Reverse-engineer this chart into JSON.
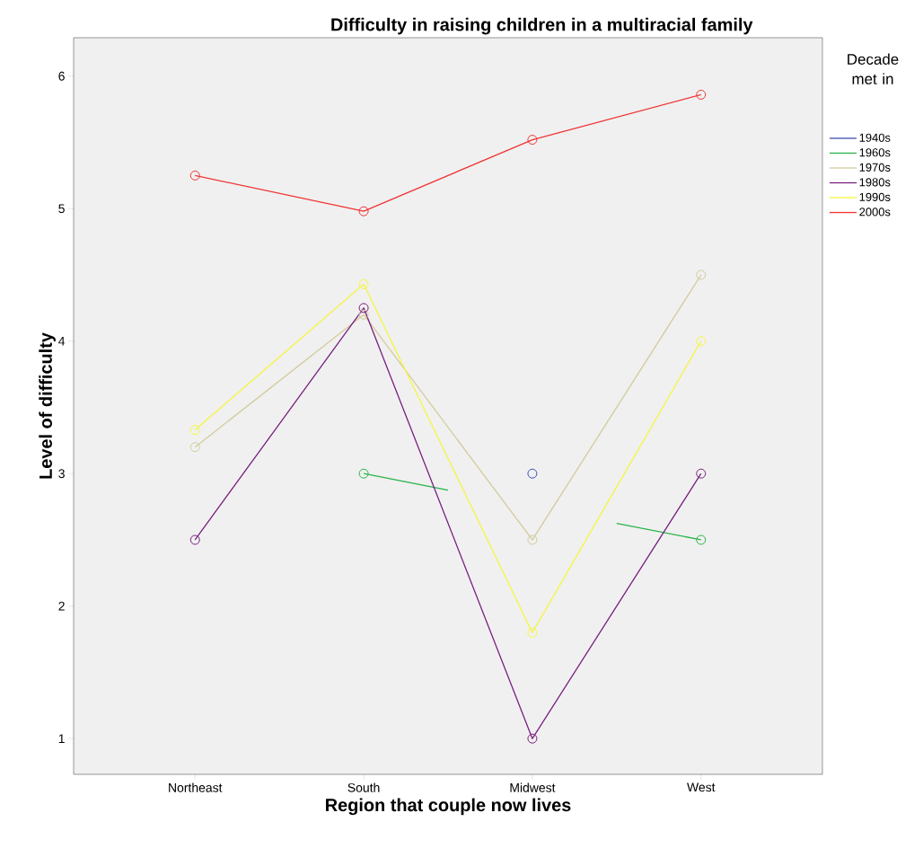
{
  "chart_data": {
    "type": "line",
    "title": "Difficulty in raising children in a multiracial family",
    "xlabel": "Region that couple now lives",
    "ylabel": "Level of difficulty",
    "legend_title": "Decade met in",
    "categories": [
      "Northeast",
      "South",
      "Midwest",
      "West"
    ],
    "ylim": [
      0.73,
      6.29
    ],
    "yticks": [
      1,
      2,
      3,
      4,
      5,
      6
    ],
    "marker": "circle",
    "legend": "right",
    "series": [
      {
        "name": "1940s",
        "color": "#3e4fb4",
        "values": [
          null,
          null,
          3,
          null
        ]
      },
      {
        "name": "1960s",
        "color": "#2ab34a",
        "values": [
          null,
          3,
          null,
          2.5
        ]
      },
      {
        "name": "1970s",
        "color": "#d2cb9b",
        "values": [
          3.2,
          4.2,
          2.5,
          4.5
        ]
      },
      {
        "name": "1980s",
        "color": "#7a1f7f",
        "values": [
          2.5,
          4.25,
          1,
          3
        ]
      },
      {
        "name": "1990s",
        "color": "#f5f542",
        "values": [
          3.33,
          4.43,
          1.8,
          4
        ]
      },
      {
        "name": "2000s",
        "color": "#f03333",
        "values": [
          5.25,
          4.98,
          5.52,
          5.86
        ]
      }
    ]
  }
}
